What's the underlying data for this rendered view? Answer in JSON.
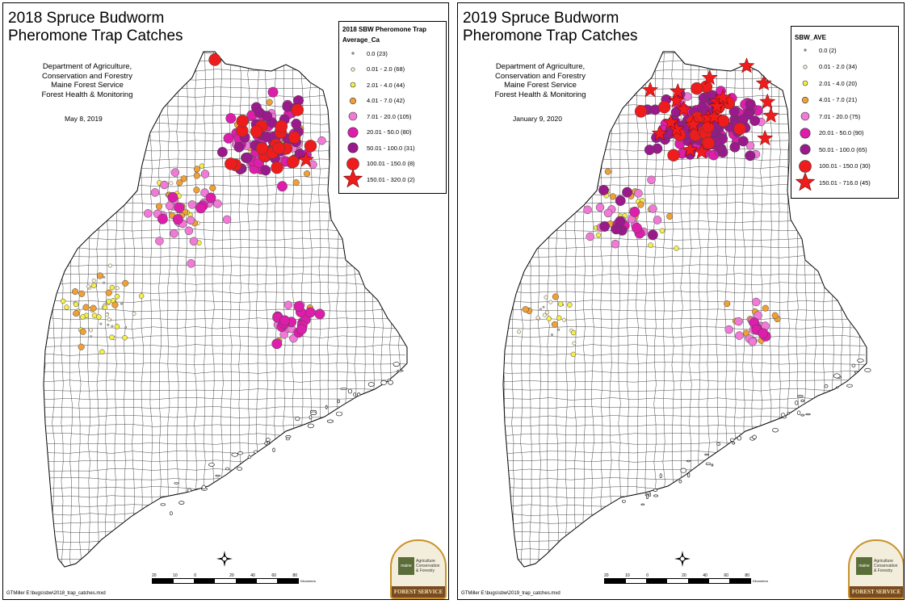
{
  "maps": [
    {
      "title": "2018 Spruce Budworm\nPheromone Trap Catches",
      "department": "Department of Agriculture,\nConservation and Forestry\nMaine Forest Service\nForest Health & Monitoring",
      "date": "May 8, 2019",
      "legend_title": "2018 SBW Pheromone Trap",
      "legend_field": "Average_Ca",
      "legend": [
        {
          "label": "0.0 (23)",
          "symbol": "tiny",
          "color": "#cccccc"
        },
        {
          "label": "0.01 - 2.0 (68)",
          "symbol": "xs",
          "color": "#fff5d6"
        },
        {
          "label": "2.01 - 4.0 (44)",
          "symbol": "sm",
          "color": "#f5f046"
        },
        {
          "label": "4.01 - 7.0 (42)",
          "symbol": "md",
          "color": "#f0a035"
        },
        {
          "label": "7.01 - 20.0 (105)",
          "symbol": "lg",
          "color": "#f07ad6"
        },
        {
          "label": "20.01 - 50.0 (80)",
          "symbol": "xl",
          "color": "#dc1eaa"
        },
        {
          "label": "50.01 - 100.0 (31)",
          "symbol": "xl",
          "color": "#9a1a8c"
        },
        {
          "label": "100.01 - 150.0 (8)",
          "symbol": "xxl",
          "color": "#ee1c1c"
        },
        {
          "label": "150.01 - 320.0 (2)",
          "symbol": "star",
          "color": "#ee1c1c"
        }
      ],
      "credit": "GTMiller E:\\bugs\\sbw\\2018_trap_catches.mxd",
      "scale_ticks": [
        "20",
        "10",
        "0",
        "",
        "20",
        "40",
        "60",
        "80"
      ],
      "scale_unit": "Kilometers",
      "logo_band": "FOREST SERVICE",
      "logo_text": "Agriculture\nConservation\n& Forestry",
      "logo_box": "maine"
    },
    {
      "title": "2019 Spruce Budworm\nPheromone Trap Catches",
      "department": "Department of Agriculture,\nConservation and Forestry\nMaine Forest Service\nForest Health & Monitoring",
      "date": "January 9, 2020",
      "legend_title": "SBW_AVE",
      "legend_field": "",
      "legend": [
        {
          "label": "0.0 (2)",
          "symbol": "tiny",
          "color": "#cccccc"
        },
        {
          "label": "0.01 - 2.0 (34)",
          "symbol": "xs",
          "color": "#fff5d6"
        },
        {
          "label": "2.01 - 4.0 (20)",
          "symbol": "sm",
          "color": "#f5f046"
        },
        {
          "label": "4.01 - 7.0 (21)",
          "symbol": "md",
          "color": "#f0a035"
        },
        {
          "label": "7.01 - 20.0 (75)",
          "symbol": "lg",
          "color": "#f07ad6"
        },
        {
          "label": "20.01 - 50.0 (90)",
          "symbol": "xl",
          "color": "#dc1eaa"
        },
        {
          "label": "50.01 - 100.0 (65)",
          "symbol": "xl",
          "color": "#9a1a8c"
        },
        {
          "label": "100.01 - 150.0 (30)",
          "symbol": "xxl",
          "color": "#ee1c1c"
        },
        {
          "label": "150.01 - 716.0 (45)",
          "symbol": "star",
          "color": "#ee1c1c"
        }
      ],
      "credit": "GTMiller E:\\bugs\\sbw\\2019_trap_catches.mxd",
      "scale_ticks": [
        "20",
        "10",
        "0",
        "",
        "20",
        "40",
        "60",
        "80"
      ],
      "scale_unit": "Kilometers",
      "logo_band": "FOREST SERVICE",
      "logo_text": "Agriculture\nConservation\n& Forestry",
      "logo_box": "maine"
    }
  ]
}
